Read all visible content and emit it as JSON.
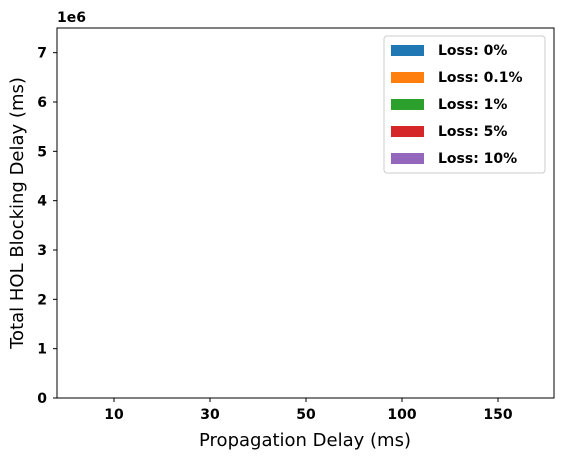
{
  "chart_data": {
    "type": "bar",
    "xlabel": "Propagation Delay (ms)",
    "ylabel": "Total HOL Blocking Delay (ms)",
    "y_multiplier_label": "1e6",
    "categories": [
      "10",
      "30",
      "50",
      "100",
      "150"
    ],
    "y_ticks": [
      0,
      1,
      2,
      3,
      4,
      5,
      6,
      7
    ],
    "ylim": [
      0,
      7.5
    ],
    "scale": 1000000,
    "series": [
      {
        "name": "Loss: 0%",
        "color": "#1f77b4",
        "values": [
          0,
          0,
          0,
          0,
          0
        ]
      },
      {
        "name": "Loss: 0.1%",
        "color": "#ff7f0e",
        "values": [
          0,
          0,
          0,
          0,
          0
        ]
      },
      {
        "name": "Loss: 1%",
        "color": "#2ca02c",
        "values": [
          0,
          0,
          0,
          0,
          0
        ]
      },
      {
        "name": "Loss: 5%",
        "color": "#d62728",
        "values": [
          0,
          0,
          0,
          0,
          0
        ]
      },
      {
        "name": "Loss: 10%",
        "color": "#9467bd",
        "values": [
          0,
          0,
          0,
          0,
          0
        ]
      }
    ],
    "legend_position": "top-right",
    "grid": false
  }
}
